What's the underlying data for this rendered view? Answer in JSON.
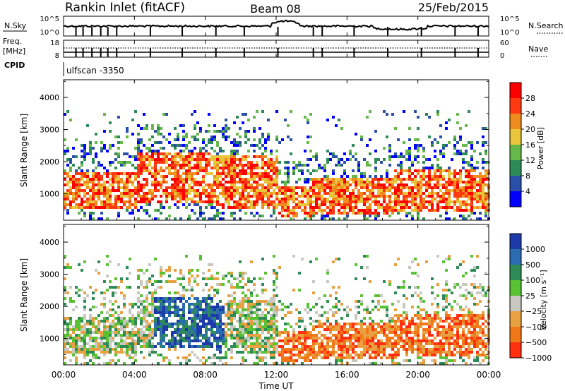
{
  "header": {
    "station": "Rankin Inlet (fitACF)",
    "beam": "Beam 08",
    "date": "25/Feb/2015"
  },
  "strip": {
    "nsky_label": "N.Sky",
    "nsky_ticks": [
      "10^5",
      "10^0"
    ],
    "nsearch_label": "N.Search",
    "nsearch_ticks": [
      "10^5",
      "10^0"
    ],
    "freq_label_1": "Freq.",
    "freq_label_2": "[MHz]",
    "freq_ticks": [
      "18",
      "8"
    ],
    "nave_label": "Nave",
    "nave_ticks": [
      "60",
      "0"
    ],
    "cpid_label": "CPID",
    "cpid_value": "ulfscan -3350"
  },
  "chart_data": [
    {
      "type": "heatmap",
      "name": "power",
      "ylabel": "Slant Range [km]",
      "ylim": [
        180,
        4550
      ],
      "yticks": [
        "1000",
        "2000",
        "3000",
        "4000"
      ],
      "colorbar_label": "Power [dB]",
      "colorbar_ticks": [
        "4",
        "8",
        "12",
        "16",
        "20",
        "24",
        "28"
      ],
      "colors": [
        "#0000ff",
        "#2a4fa8",
        "#2e8b57",
        "#66b84a",
        "#e8c53a",
        "#f08c1e",
        "#ff3a10",
        "#ff0000"
      ]
    },
    {
      "type": "heatmap",
      "name": "velocity",
      "ylabel": "Slant Range [km]",
      "ylim": [
        180,
        4550
      ],
      "yticks": [
        "1000",
        "2000",
        "3000",
        "4000"
      ],
      "colorbar_label": "Velocity [m s⁻¹]",
      "colorbar_ticks": [
        "1000",
        "500",
        "100",
        "25",
        "−25",
        "−100",
        "−500",
        "−1000"
      ],
      "colors": [
        "#1c3aa8",
        "#2b6cb0",
        "#2e8b57",
        "#58c232",
        "#c8c8c0",
        "#e8a040",
        "#f07818",
        "#ff3010"
      ],
      "xlabel": "Time UT",
      "xticks": [
        "00:00",
        "04:00",
        "08:00",
        "12:00",
        "16:00",
        "20:00",
        "00:00"
      ]
    }
  ]
}
